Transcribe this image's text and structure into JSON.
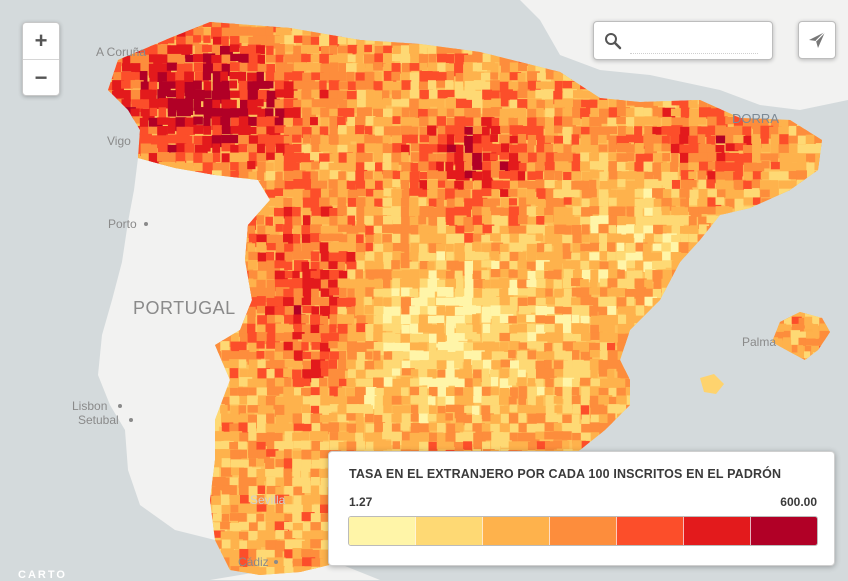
{
  "map": {
    "labels": {
      "a_coruna": "A Coruña",
      "vigo": "Vigo",
      "porto": "Porto",
      "portugal": "PORTUGAL",
      "lisbon": "Lisbon",
      "setubal": "Setubal",
      "sevilla": "Sevilla",
      "cadiz": "Cádiz",
      "andorra": "DORRA",
      "palma": "Palma"
    },
    "colors": {
      "water": "#d4dadc",
      "land": "#f2f2f1",
      "border": "#ffffff"
    }
  },
  "controls": {
    "zoom_in": "+",
    "zoom_out": "−",
    "search_placeholder": "",
    "search_icon": "search-icon",
    "share_icon": "paper-plane-icon"
  },
  "legend": {
    "title": "TASA EN EL EXTRANJERO POR CADA 100 INSCRITOS EN EL PADRÓN",
    "min": "1.27",
    "max": "600.00",
    "ramp": [
      "#fff5a8",
      "#fed974",
      "#feb24c",
      "#fd8d3c",
      "#fc4e2a",
      "#e31a1c",
      "#b10026"
    ]
  },
  "attribution": "CARTO"
}
